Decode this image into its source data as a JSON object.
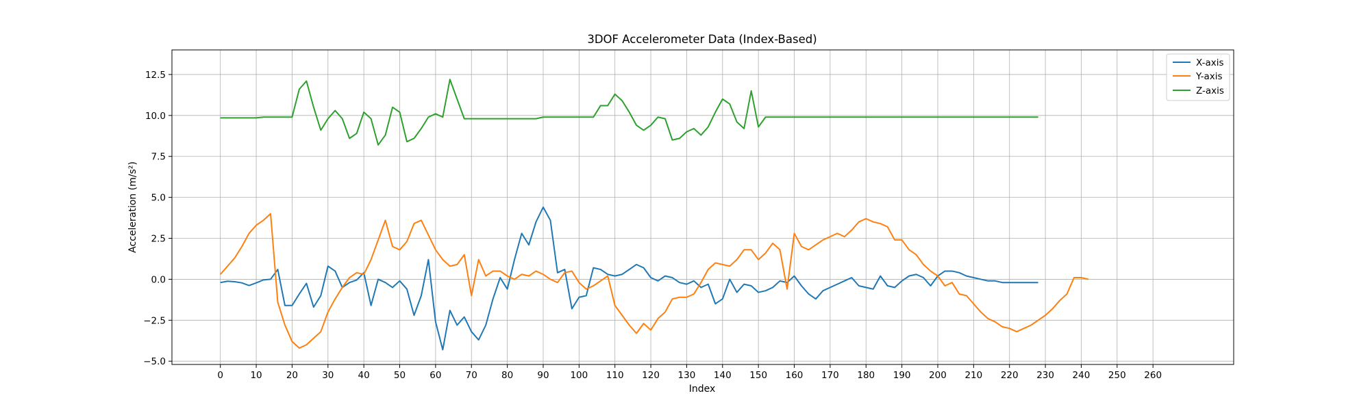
{
  "chart_data": {
    "type": "line",
    "title": "3DOF Accelerometer Data (Index-Based)",
    "xlabel": "Index",
    "ylabel": "Acceleration (m/s²)",
    "xlim": [
      -13.5,
      282.5
    ],
    "ylim": [
      -5.2,
      14.0
    ],
    "x_ticks": [
      0,
      10,
      20,
      30,
      40,
      50,
      60,
      70,
      80,
      90,
      100,
      110,
      120,
      130,
      140,
      150,
      160,
      170,
      180,
      190,
      200,
      210,
      220,
      230,
      240,
      250,
      260
    ],
    "y_ticks": [
      -5.0,
      -2.5,
      0.0,
      2.5,
      5.0,
      7.5,
      10.0,
      12.5
    ],
    "y_tick_labels": [
      "−5.0",
      "−2.5",
      "0.0",
      "2.5",
      "5.0",
      "7.5",
      "10.0",
      "12.5"
    ],
    "grid": true,
    "legend_position": "top-right",
    "x_sample_step": 2,
    "series": [
      {
        "name": "X-axis",
        "color": "#1f77b4",
        "values": [
          -0.2,
          -0.12,
          -0.15,
          -0.22,
          -0.38,
          -0.22,
          -0.04,
          0.0,
          0.6,
          -1.6,
          -1.6,
          -0.9,
          -0.25,
          -1.7,
          -1.0,
          0.8,
          0.5,
          -0.5,
          -0.2,
          -0.05,
          0.4,
          -1.6,
          0.0,
          -0.2,
          -0.5,
          -0.1,
          -0.6,
          -2.2,
          -1.0,
          1.2,
          -2.6,
          -4.3,
          -1.9,
          -2.8,
          -2.3,
          -3.2,
          -3.7,
          -2.8,
          -1.2,
          0.1,
          -0.6,
          1.2,
          2.8,
          2.1,
          3.5,
          4.4,
          3.6,
          0.4,
          0.6,
          -1.8,
          -1.1,
          -1.0,
          0.7,
          0.6,
          0.3,
          0.2,
          0.3,
          0.6,
          0.9,
          0.7,
          0.1,
          -0.1,
          0.2,
          0.1,
          -0.2,
          -0.3,
          -0.1,
          -0.5,
          -0.3,
          -1.5,
          -1.2,
          0.0,
          -0.8,
          -0.3,
          -0.4,
          -0.8,
          -0.7,
          -0.5,
          -0.1,
          -0.2,
          0.2,
          -0.4,
          -0.9,
          -1.2,
          -0.7,
          -0.5,
          -0.3,
          -0.1,
          0.1,
          -0.4,
          -0.5,
          -0.6,
          0.2,
          -0.4,
          -0.5,
          -0.1,
          0.2,
          0.3,
          0.1,
          -0.4,
          0.2,
          0.5,
          0.5,
          0.4,
          0.2,
          0.1,
          0.0,
          -0.1,
          -0.1,
          -0.2,
          -0.2,
          -0.2,
          -0.2,
          -0.2,
          -0.2
        ]
      },
      {
        "name": "Y-axis",
        "color": "#ff7f0e",
        "values": [
          0.3,
          0.8,
          1.3,
          2.0,
          2.8,
          3.3,
          3.6,
          4.0,
          -1.4,
          -2.8,
          -3.8,
          -4.2,
          -4.0,
          -3.6,
          -3.2,
          -2.0,
          -1.2,
          -0.5,
          0.1,
          0.4,
          0.3,
          1.2,
          2.4,
          3.6,
          2.0,
          1.8,
          2.3,
          3.4,
          3.6,
          2.7,
          1.8,
          1.2,
          0.8,
          0.9,
          1.5,
          -1.0,
          1.2,
          0.2,
          0.5,
          0.5,
          0.2,
          0.0,
          0.3,
          0.2,
          0.5,
          0.3,
          0.0,
          -0.2,
          0.4,
          0.5,
          -0.2,
          -0.6,
          -0.4,
          -0.1,
          0.2,
          -1.6,
          -2.2,
          -2.8,
          -3.3,
          -2.7,
          -3.1,
          -2.4,
          -2.0,
          -1.2,
          -1.1,
          -1.1,
          -0.9,
          -0.2,
          0.6,
          1.0,
          0.9,
          0.8,
          1.2,
          1.8,
          1.8,
          1.2,
          1.6,
          2.2,
          1.8,
          -0.6,
          2.8,
          2.0,
          1.8,
          2.1,
          2.4,
          2.6,
          2.8,
          2.6,
          3.0,
          3.5,
          3.7,
          3.5,
          3.4,
          3.2,
          2.4,
          2.4,
          1.8,
          1.5,
          0.9,
          0.5,
          0.2,
          -0.4,
          -0.2,
          -0.9,
          -1.0,
          -1.5,
          -2.0,
          -2.4,
          -2.6,
          -2.9,
          -3.0,
          -3.2,
          -3.0,
          -2.8,
          -2.5,
          -2.2,
          -1.8,
          -1.3,
          -0.9,
          0.1,
          0.1,
          0.0
        ]
      },
      {
        "name": "Z-axis",
        "color": "#2ca02c",
        "values": [
          9.85,
          9.85,
          9.85,
          9.85,
          9.85,
          9.85,
          9.9,
          9.9,
          9.9,
          9.9,
          9.9,
          11.6,
          12.1,
          10.5,
          9.1,
          9.8,
          10.3,
          9.8,
          8.6,
          8.9,
          10.2,
          9.8,
          8.2,
          8.8,
          10.5,
          10.2,
          8.4,
          8.6,
          9.2,
          9.9,
          10.1,
          9.9,
          12.2,
          11.0,
          9.8,
          9.8,
          9.8,
          9.8,
          9.8,
          9.8,
          9.8,
          9.8,
          9.8,
          9.8,
          9.8,
          9.9,
          9.9,
          9.9,
          9.9,
          9.9,
          9.9,
          9.9,
          9.9,
          10.6,
          10.6,
          11.3,
          10.9,
          10.2,
          9.4,
          9.1,
          9.4,
          9.9,
          9.8,
          8.5,
          8.6,
          9.0,
          9.2,
          8.8,
          9.3,
          10.2,
          11.0,
          10.7,
          9.6,
          9.2,
          11.5,
          9.3,
          9.9,
          9.9,
          9.9,
          9.9,
          9.9,
          9.9,
          9.9,
          9.9,
          9.9,
          9.9,
          9.9,
          9.9,
          9.9,
          9.9,
          9.9,
          9.9,
          9.9,
          9.9,
          9.9,
          9.9,
          9.9,
          9.9,
          9.9,
          9.9,
          9.9,
          9.9,
          9.9,
          9.9,
          9.9,
          9.9,
          9.9,
          9.9,
          9.9,
          9.9,
          9.9,
          9.9,
          9.9,
          9.9,
          9.9
        ]
      }
    ]
  }
}
